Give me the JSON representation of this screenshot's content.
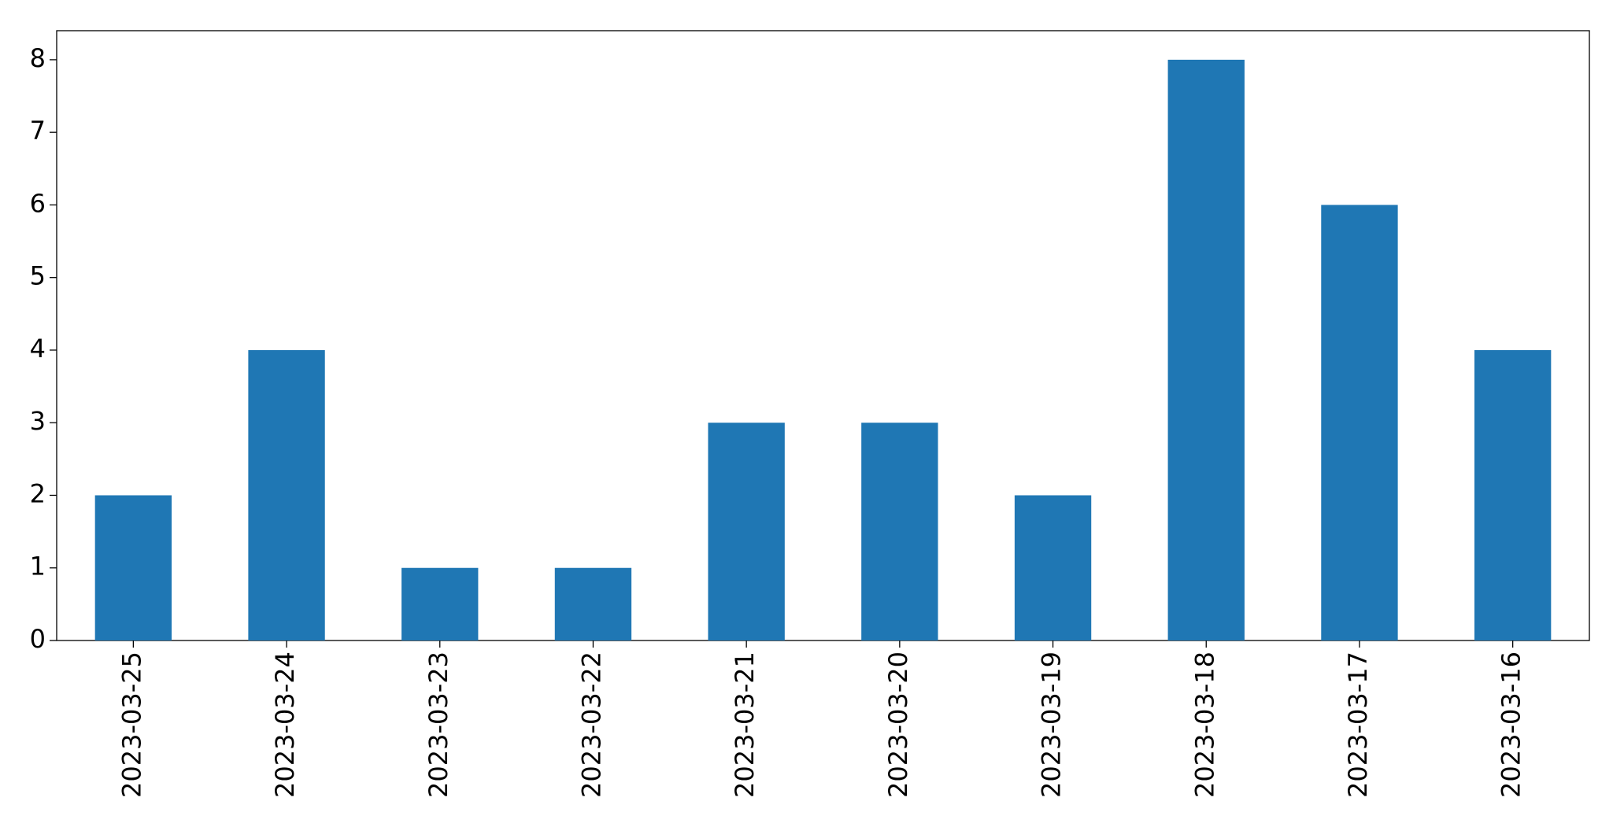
{
  "chart_data": {
    "type": "bar",
    "categories": [
      "2023-03-25",
      "2023-03-24",
      "2023-03-23",
      "2023-03-22",
      "2023-03-21",
      "2023-03-20",
      "2023-03-19",
      "2023-03-18",
      "2023-03-17",
      "2023-03-16"
    ],
    "values": [
      2,
      4,
      1,
      1,
      3,
      3,
      2,
      8,
      6,
      4
    ],
    "color": "#1f77b4",
    "ylim": [
      0,
      8.4
    ],
    "yticks": [
      0,
      1,
      2,
      3,
      4,
      5,
      6,
      7,
      8
    ],
    "grid": false
  }
}
